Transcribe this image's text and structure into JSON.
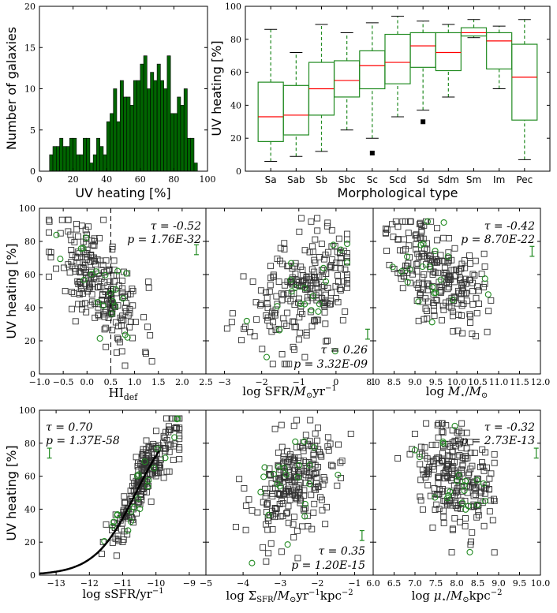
{
  "chart_data": [
    {
      "id": "hist",
      "type": "bar",
      "xlabel": "UV heating [%]",
      "ylabel": "Number of galaxies",
      "xlim": [
        0,
        100
      ],
      "ylim": [
        0,
        20
      ],
      "xticks": [
        "0",
        "20",
        "40",
        "60",
        "80",
        "100"
      ],
      "yticks": [
        "0",
        "5",
        "10",
        "15",
        "20"
      ],
      "bin_width": 2,
      "bin_starts": [
        6,
        8,
        10,
        12,
        14,
        16,
        18,
        20,
        22,
        24,
        26,
        28,
        30,
        32,
        34,
        36,
        38,
        40,
        42,
        44,
        46,
        48,
        50,
        52,
        54,
        56,
        58,
        60,
        62,
        64,
        66,
        68,
        70,
        72,
        74,
        76,
        78,
        80,
        82,
        84,
        86,
        88,
        90,
        92
      ],
      "values": [
        2,
        3,
        3,
        4,
        3,
        3,
        4,
        4,
        2,
        2,
        4,
        4,
        1,
        2,
        4,
        3,
        2,
        6,
        7,
        10,
        6,
        11,
        9,
        9,
        8,
        11,
        11,
        13,
        14,
        10,
        12,
        11,
        13,
        11,
        10,
        14,
        7,
        7,
        9,
        8,
        10,
        4,
        4,
        1
      ],
      "color": "#006400"
    },
    {
      "id": "boxplot",
      "type": "box",
      "xlabel": "Morphological type",
      "ylabel": "UV heating [%]",
      "ylim": [
        0,
        100
      ],
      "yticks": [
        "0",
        "20",
        "40",
        "60",
        "80",
        "100"
      ],
      "categories": [
        "Sa",
        "Sab",
        "Sb",
        "Sbc",
        "Sc",
        "Scd",
        "Sd",
        "Sdm",
        "Sm",
        "Im",
        "Pec"
      ],
      "whisker_low": [
        6,
        9,
        12,
        25,
        20,
        33,
        37,
        45,
        81,
        50,
        7
      ],
      "q1": [
        18,
        22,
        34,
        45,
        50,
        53,
        63,
        61,
        82,
        62,
        31
      ],
      "median": [
        33,
        34,
        50,
        55,
        64,
        66,
        76,
        72,
        84,
        79,
        57
      ],
      "q3": [
        54,
        52,
        66,
        67,
        73,
        83,
        84,
        84,
        87,
        84,
        77
      ],
      "whisker_high": [
        86,
        72,
        89,
        84,
        90,
        94,
        91,
        89,
        92,
        88,
        92
      ],
      "outliers": [
        [],
        [],
        [],
        [],
        [
          11
        ],
        [],
        [
          30
        ],
        [],
        [],
        [],
        []
      ],
      "box_color": "#228b22",
      "median_color": "#ff0000"
    },
    {
      "id": "hidef",
      "type": "scatter",
      "xlabel": "HIdef",
      "ylabel": "UV heating [%]",
      "xlim": [
        -1.0,
        2.5
      ],
      "ylim": [
        0,
        100
      ],
      "xticks": [
        "−1.0",
        "−0.5",
        "0.0",
        "0.5",
        "1.0",
        "1.5",
        "2.0",
        "2.5"
      ],
      "yticks": [
        "0",
        "20",
        "40",
        "60",
        "80",
        "100"
      ],
      "tau": "τ = -0.52",
      "pval": "p = 1.76E-32",
      "vline_x": 0.5,
      "errbar": {
        "x": 2.3,
        "y": 75,
        "dy": 3
      }
    },
    {
      "id": "sfr",
      "type": "scatter",
      "xlabel": "log SFR/M⊙yr⁻¹",
      "xlim": [
        -3.5,
        1.0
      ],
      "ylim": [
        0,
        100
      ],
      "xticks": [
        "−3",
        "−2",
        "−1",
        "0",
        "1"
      ],
      "tau": "τ = 0.26",
      "pval": "p = 3.32E-09",
      "errbar": {
        "x": 0.85,
        "y": 24,
        "dy": 3
      }
    },
    {
      "id": "mstar",
      "type": "scatter",
      "xlabel": "log M⋆/M⊙",
      "xlim": [
        8.0,
        12.0
      ],
      "ylim": [
        0,
        100
      ],
      "xticks": [
        "8.0",
        "8.5",
        "9.0",
        "9.5",
        "10.0",
        "10.5",
        "11.0",
        "11.5",
        "12.0"
      ],
      "tau": "τ = -0.42",
      "pval": "p = 8.70E-22",
      "errbar": {
        "x": 11.8,
        "y": 74,
        "dy": 3
      }
    },
    {
      "id": "ssfr",
      "type": "scatter",
      "xlabel": "log sSFR/yr⁻¹",
      "ylabel": "UV heating [%]",
      "xlim": [
        -13.5,
        -8.5
      ],
      "ylim": [
        0,
        100
      ],
      "xticks": [
        "−13",
        "−12",
        "−11",
        "−10",
        "−9"
      ],
      "yticks": [
        "0",
        "20",
        "40",
        "60",
        "80",
        "100"
      ],
      "tau": "τ = 0.70",
      "pval": "p = 1.37E-58",
      "errbar": {
        "x": -13.2,
        "y": 74,
        "dy": 3
      }
    },
    {
      "id": "sigmasfr",
      "type": "scatter",
      "xlabel": "log ΣSFR/M⊙yr⁻¹kpc⁻²",
      "xlim": [
        -5.0,
        -0.5
      ],
      "ylim": [
        0,
        100
      ],
      "xticks": [
        "−5",
        "−4",
        "−3",
        "−2",
        "−1"
      ],
      "tau": "τ = 0.35",
      "pval": "p = 1.20E-15",
      "errbar": {
        "x": -0.8,
        "y": 24,
        "dy": 3
      }
    },
    {
      "id": "mustar",
      "type": "scatter",
      "xlabel": "log μ⋆/M⊙kpc⁻²",
      "xlim": [
        6.0,
        10.0
      ],
      "ylim": [
        0,
        100
      ],
      "xticks": [
        "6.0",
        "6.5",
        "7.0",
        "7.5",
        "8.0",
        "8.5",
        "9.0",
        "9.5",
        "10.0"
      ],
      "tau": "τ = -0.32",
      "pval": "p = 2.73E-13",
      "errbar": {
        "x": 9.9,
        "y": 74,
        "dy": 3
      }
    }
  ],
  "colors": {
    "black_marker": "#333333",
    "green_marker": "#228b22"
  }
}
